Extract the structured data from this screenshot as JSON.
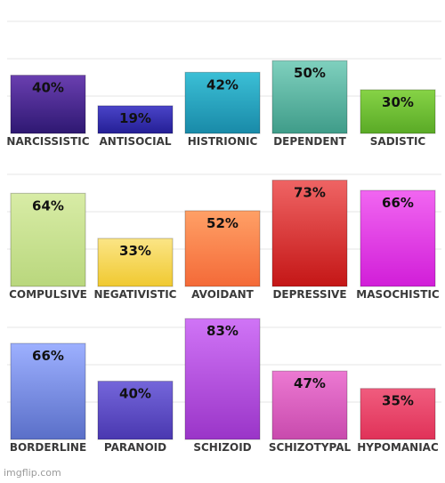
{
  "watermark": "imgflip.com",
  "chart_data": [
    {
      "type": "bar",
      "categories": [
        "NARCISSISTIC",
        "ANTISOCIAL",
        "HISTRIONIC",
        "DEPENDENT",
        "SADISTIC"
      ],
      "values": [
        40,
        19,
        42,
        50,
        30
      ],
      "value_labels": [
        "40%",
        "19%",
        "42%",
        "50%",
        "30%"
      ],
      "colors": [
        [
          "#6a3fb0",
          "#2e1872"
        ],
        [
          "#4a44c8",
          "#241f95"
        ],
        [
          "#3bbfd6",
          "#198aa8"
        ],
        [
          "#7fd0be",
          "#3f9c89"
        ],
        [
          "#86d346",
          "#5aaa26"
        ]
      ],
      "ylim": [
        0,
        100
      ]
    },
    {
      "type": "bar",
      "categories": [
        "COMPULSIVE",
        "NEGATIVISTIC",
        "AVOIDANT",
        "DEPRESSIVE",
        "MASOCHISTIC"
      ],
      "values": [
        64,
        33,
        52,
        73,
        66
      ],
      "value_labels": [
        "64%",
        "33%",
        "52%",
        "73%",
        "66%"
      ],
      "colors": [
        [
          "#d8eca6",
          "#b9d77d"
        ],
        [
          "#fbe586",
          "#f0c930"
        ],
        [
          "#ffa066",
          "#f46a38"
        ],
        [
          "#ef6464",
          "#c41616"
        ],
        [
          "#f166f1",
          "#d11ed8"
        ]
      ],
      "ylim": [
        0,
        100
      ]
    },
    {
      "type": "bar",
      "categories": [
        "BORDERLINE",
        "PARANOID",
        "SCHIZOID",
        "SCHIZOTYPAL",
        "HYPOMANIAC"
      ],
      "values": [
        66,
        40,
        83,
        47,
        35
      ],
      "value_labels": [
        "66%",
        "40%",
        "83%",
        "47%",
        "35%"
      ],
      "colors": [
        [
          "#9db0ff",
          "#5a6fc8"
        ],
        [
          "#7466da",
          "#4a38b0"
        ],
        [
          "#d074f6",
          "#9a35c8"
        ],
        [
          "#ec79d2",
          "#c84aad"
        ],
        [
          "#f05c7e",
          "#e03258"
        ]
      ],
      "ylim": [
        0,
        100
      ]
    }
  ]
}
